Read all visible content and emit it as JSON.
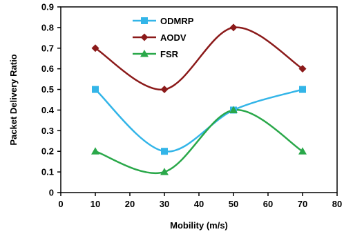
{
  "chart_data": {
    "type": "line",
    "title": "",
    "xlabel": "Mobility (m/s)",
    "ylabel": "Packet Delivery Ratio",
    "xlim": [
      0,
      80
    ],
    "ylim": [
      0,
      0.9
    ],
    "x_ticks": [
      "0",
      "10",
      "20",
      "30",
      "40",
      "50",
      "60",
      "70",
      "80"
    ],
    "y_ticks": [
      "0",
      "0.1",
      "0.2",
      "0.3",
      "0.4",
      "0.5",
      "0.6",
      "0.7",
      "0.8",
      "0.9"
    ],
    "x_tick_values": [
      0,
      10,
      20,
      30,
      40,
      50,
      60,
      70,
      80
    ],
    "y_tick_values": [
      0,
      0.1,
      0.2,
      0.3,
      0.4,
      0.5,
      0.6,
      0.7,
      0.8,
      0.9
    ],
    "grid": false,
    "legend_position": "top-center",
    "smooth": true,
    "series": [
      {
        "name": "ODMRP",
        "x": [
          10,
          30,
          50,
          70
        ],
        "y": [
          0.5,
          0.2,
          0.4,
          0.5
        ],
        "color": "#33b5e8",
        "marker": "square"
      },
      {
        "name": "AODV",
        "x": [
          10,
          30,
          50,
          70
        ],
        "y": [
          0.7,
          0.5,
          0.8,
          0.6
        ],
        "color": "#8b1a1a",
        "marker": "diamond"
      },
      {
        "name": "FSR",
        "x": [
          10,
          30,
          50,
          70
        ],
        "y": [
          0.2,
          0.1,
          0.4,
          0.2
        ],
        "color": "#2aa84a",
        "marker": "triangle"
      }
    ]
  }
}
